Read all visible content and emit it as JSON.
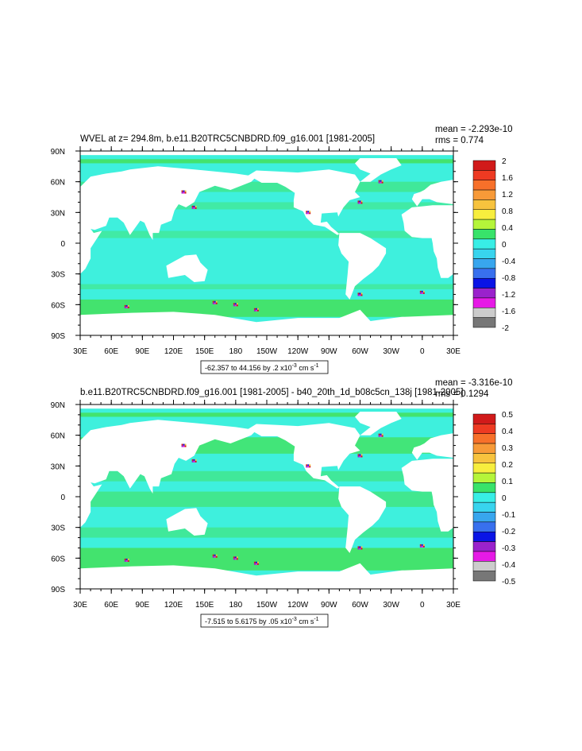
{
  "chart_data": [
    {
      "type": "heatmap",
      "title": "WVEL at z= 294.8m, b.e11.B20TRC5CNBDRD.f09_g16.001 [1981-2005]",
      "stats": {
        "mean": "mean = -2.293e-10",
        "rms": "rms = 0.774"
      },
      "y_ticks": [
        "90N",
        "60N",
        "30N",
        "0",
        "30S",
        "60S",
        "90S"
      ],
      "x_ticks": [
        "30E",
        "60E",
        "90E",
        "120E",
        "150E",
        "180",
        "150W",
        "120W",
        "90W",
        "60W",
        "30W",
        "0",
        "30E"
      ],
      "x_range": [
        30,
        390
      ],
      "y_range": [
        -90,
        90
      ],
      "range_label": {
        "text": "-62.357 to 44.156 by .2 x10",
        "exp": "-3",
        "units": " cm s",
        "units_exp": "-1"
      },
      "colorbar": {
        "labels": [
          "2",
          "1.6",
          "1.2",
          "0.8",
          "0.4",
          "0",
          "-0.4",
          "-0.8",
          "-1.2",
          "-1.6",
          "-2"
        ],
        "colors": [
          "#d11a1a",
          "#ee3a22",
          "#f7702a",
          "#f79a38",
          "#f7c33e",
          "#f7ee3e",
          "#b5f53a",
          "#38e36a",
          "#38eee6",
          "#38d4ee",
          "#38a6ee",
          "#3870ee",
          "#0a14e6",
          "#9a22cc",
          "#e61ae6",
          "#cccccc",
          "#777777"
        ]
      }
    },
    {
      "type": "heatmap",
      "title": "b.e11.B20TRC5CNBDRD.f09_g16.001 [1981-2005] - b40_20th_1d_b08c5cn_138j [1981-2005]",
      "stats": {
        "mean": "mean = -3.316e-10",
        "rms": "rms = 0.1294"
      },
      "y_ticks": [
        "90N",
        "60N",
        "30N",
        "0",
        "30S",
        "60S",
        "90S"
      ],
      "x_ticks": [
        "30E",
        "60E",
        "90E",
        "120E",
        "150E",
        "180",
        "150W",
        "120W",
        "90W",
        "60W",
        "30W",
        "0",
        "30E"
      ],
      "x_range": [
        30,
        390
      ],
      "y_range": [
        -90,
        90
      ],
      "range_label": {
        "text": "-7.515 to 5.6175 by .05 x10",
        "exp": "-3",
        "units": " cm s",
        "units_exp": "-1"
      },
      "colorbar": {
        "labels": [
          "0.5",
          "0.4",
          "0.3",
          "0.2",
          "0.1",
          "0",
          "-0.1",
          "-0.2",
          "-0.3",
          "-0.4",
          "-0.5"
        ],
        "colors": [
          "#d11a1a",
          "#ee3a22",
          "#f7702a",
          "#f79a38",
          "#f7c33e",
          "#f7ee3e",
          "#b5f53a",
          "#38e36a",
          "#38eee6",
          "#38d4ee",
          "#38a6ee",
          "#3870ee",
          "#0a14e6",
          "#9a22cc",
          "#e61ae6",
          "#cccccc",
          "#777777"
        ]
      }
    }
  ],
  "colors": {
    "background_field": "#3ef0dd",
    "positive_band": "#43e36e",
    "land": "#ffffff"
  }
}
